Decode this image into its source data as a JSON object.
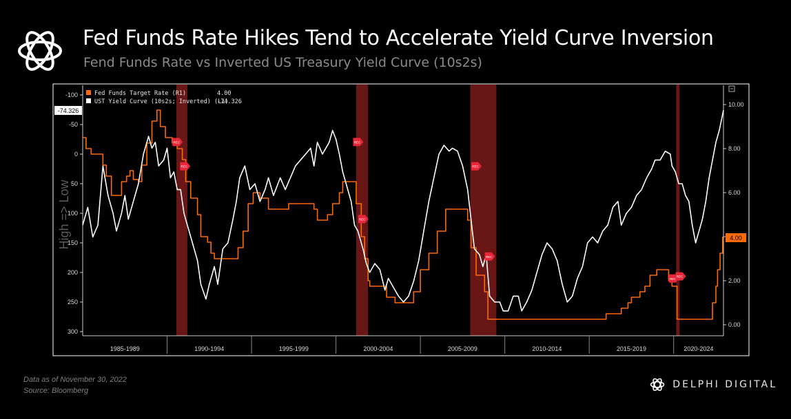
{
  "header": {
    "title": "Fed Funds Rate Hikes Tend to Accelerate Yield Curve Inversion",
    "subtitle": "Fend Funds Rate vs Inverted US Treasury Yield Curve (10s2s)"
  },
  "footer": {
    "data_note": "Data as of November 30, 2022",
    "source": "Source: Bloomberg",
    "brand": "DELPHI DIGITAL"
  },
  "colors": {
    "background": "#000000",
    "fed_funds": "#ff6a00",
    "yield_curve": "#ffffff",
    "recession": "#7a1a1a",
    "rec_marker": "#e8263a"
  },
  "chart_data": {
    "type": "line",
    "left_axis": {
      "label": "High => Low",
      "ticks": [
        "-100",
        "-50",
        "0",
        "50",
        "100",
        "150",
        "200",
        "250",
        "300"
      ],
      "ylim": [
        -100,
        300
      ],
      "inverted": true,
      "current_value_label": "-74.326"
    },
    "right_axis": {
      "ticks": [
        "0.00",
        "2.00",
        "4.00",
        "6.00",
        "8.00",
        "10.00"
      ],
      "ylim": [
        0,
        10.5
      ],
      "current_value_label": "4.00"
    },
    "x_period_labels": [
      "1985-1989",
      "1990-1994",
      "1995-1999",
      "2000-2004",
      "2005-2009",
      "2010-2014",
      "2015-2019",
      "2020-2024"
    ],
    "x_range": [
      1985.0,
      2022.95
    ],
    "recessions": [
      [
        1990.55,
        1991.2
      ],
      [
        2001.2,
        2001.9
      ],
      [
        2007.95,
        2009.5
      ],
      [
        2020.15,
        2020.35
      ]
    ],
    "rec_marker_label": "REC",
    "rec_markers": [
      {
        "x": 1990.6,
        "y_rate": 8.3
      },
      {
        "x": 1991.05,
        "y_rate": 7.2
      },
      {
        "x": 2001.3,
        "y_rate": 8.3
      },
      {
        "x": 2001.6,
        "y_rate": 4.8
      },
      {
        "x": 2008.3,
        "y_rate": 7.2
      },
      {
        "x": 2009.1,
        "y_rate": 3.1
      },
      {
        "x": 2020.0,
        "y_rate": 2.1
      },
      {
        "x": 2020.4,
        "y_rate": 2.2
      }
    ],
    "legend": [
      {
        "label": "Fed Funds Target Rate (R1)",
        "value": "4.00"
      },
      {
        "label": "UST Yield Curve (10s2s; Inverted) (L1)",
        "value": "-74.326"
      }
    ],
    "series": [
      {
        "name": "Fed Funds Target Rate (R1)",
        "axis": "right",
        "points": [
          [
            1985.0,
            8.5
          ],
          [
            1985.2,
            8.0
          ],
          [
            1985.5,
            7.75
          ],
          [
            1985.9,
            7.75
          ],
          [
            1986.2,
            7.25
          ],
          [
            1986.4,
            6.75
          ],
          [
            1986.7,
            5.875
          ],
          [
            1987.0,
            5.875
          ],
          [
            1987.3,
            6.5
          ],
          [
            1987.6,
            6.75
          ],
          [
            1987.8,
            7.0
          ],
          [
            1988.0,
            6.6
          ],
          [
            1988.3,
            6.5
          ],
          [
            1988.5,
            7.25
          ],
          [
            1988.8,
            8.25
          ],
          [
            1989.1,
            9.25
          ],
          [
            1989.4,
            9.75
          ],
          [
            1989.6,
            9.0
          ],
          [
            1989.9,
            8.5
          ],
          [
            1990.3,
            8.25
          ],
          [
            1990.6,
            8.0
          ],
          [
            1990.9,
            7.5
          ],
          [
            1991.1,
            6.5
          ],
          [
            1991.4,
            5.75
          ],
          [
            1991.8,
            5.0
          ],
          [
            1992.0,
            4.0
          ],
          [
            1992.4,
            3.75
          ],
          [
            1992.6,
            3.25
          ],
          [
            1992.8,
            3.0
          ],
          [
            1994.0,
            3.0
          ],
          [
            1994.2,
            3.5
          ],
          [
            1994.5,
            4.25
          ],
          [
            1994.8,
            5.5
          ],
          [
            1995.1,
            6.0
          ],
          [
            1995.5,
            5.75
          ],
          [
            1996.0,
            5.25
          ],
          [
            1997.2,
            5.5
          ],
          [
            1998.7,
            5.25
          ],
          [
            1998.9,
            4.75
          ],
          [
            1999.5,
            5.0
          ],
          [
            1999.8,
            5.5
          ],
          [
            2000.2,
            6.0
          ],
          [
            2000.4,
            6.5
          ],
          [
            2001.0,
            6.5
          ],
          [
            2001.2,
            5.5
          ],
          [
            2001.5,
            4.0
          ],
          [
            2001.7,
            3.0
          ],
          [
            2001.9,
            2.0
          ],
          [
            2002.0,
            1.75
          ],
          [
            2002.9,
            1.75
          ],
          [
            2003.0,
            1.25
          ],
          [
            2003.5,
            1.0
          ],
          [
            2004.4,
            1.0
          ],
          [
            2004.6,
            1.5
          ],
          [
            2005.0,
            2.5
          ],
          [
            2005.5,
            3.25
          ],
          [
            2006.0,
            4.25
          ],
          [
            2006.5,
            5.25
          ],
          [
            2007.6,
            5.25
          ],
          [
            2007.8,
            4.75
          ],
          [
            2008.0,
            3.5
          ],
          [
            2008.3,
            2.25
          ],
          [
            2008.8,
            1.5
          ],
          [
            2009.0,
            0.25
          ],
          [
            2015.9,
            0.25
          ],
          [
            2016.0,
            0.5
          ],
          [
            2016.9,
            0.75
          ],
          [
            2017.3,
            1.0
          ],
          [
            2017.5,
            1.25
          ],
          [
            2018.0,
            1.5
          ],
          [
            2018.3,
            1.75
          ],
          [
            2018.6,
            2.25
          ],
          [
            2019.0,
            2.5
          ],
          [
            2019.6,
            2.5
          ],
          [
            2019.7,
            2.0
          ],
          [
            2019.9,
            1.75
          ],
          [
            2020.1,
            1.75
          ],
          [
            2020.2,
            0.25
          ],
          [
            2022.1,
            0.25
          ],
          [
            2022.3,
            1.0
          ],
          [
            2022.5,
            1.75
          ],
          [
            2022.6,
            2.5
          ],
          [
            2022.75,
            3.25
          ],
          [
            2022.9,
            4.0
          ]
        ]
      },
      {
        "name": "UST Yield Curve (10s2s; Inverted) (L1)",
        "axis": "left",
        "points": [
          [
            1985.0,
            120
          ],
          [
            1985.3,
            90
          ],
          [
            1985.6,
            140
          ],
          [
            1985.9,
            120
          ],
          [
            1986.2,
            20
          ],
          [
            1986.5,
            70
          ],
          [
            1986.8,
            100
          ],
          [
            1987.0,
            130
          ],
          [
            1987.3,
            100
          ],
          [
            1987.5,
            70
          ],
          [
            1987.7,
            110
          ],
          [
            1988.0,
            80
          ],
          [
            1988.3,
            50
          ],
          [
            1988.6,
            0
          ],
          [
            1988.9,
            -30
          ],
          [
            1989.1,
            -10
          ],
          [
            1989.3,
            -20
          ],
          [
            1989.5,
            20
          ],
          [
            1989.8,
            10
          ],
          [
            1990.0,
            -10
          ],
          [
            1990.2,
            40
          ],
          [
            1990.4,
            30
          ],
          [
            1990.6,
            60
          ],
          [
            1990.8,
            60
          ],
          [
            1991.0,
            100
          ],
          [
            1991.2,
            120
          ],
          [
            1991.5,
            150
          ],
          [
            1991.8,
            180
          ],
          [
            1992.0,
            220
          ],
          [
            1992.3,
            245
          ],
          [
            1992.5,
            220
          ],
          [
            1992.8,
            190
          ],
          [
            1993.0,
            220
          ],
          [
            1993.3,
            160
          ],
          [
            1993.6,
            150
          ],
          [
            1993.9,
            110
          ],
          [
            1994.1,
            80
          ],
          [
            1994.3,
            40
          ],
          [
            1994.6,
            20
          ],
          [
            1994.9,
            60
          ],
          [
            1995.2,
            50
          ],
          [
            1995.5,
            80
          ],
          [
            1995.8,
            60
          ],
          [
            1996.0,
            40
          ],
          [
            1996.3,
            70
          ],
          [
            1996.7,
            40
          ],
          [
            1997.0,
            60
          ],
          [
            1997.3,
            40
          ],
          [
            1997.6,
            20
          ],
          [
            1997.9,
            10
          ],
          [
            1998.2,
            0
          ],
          [
            1998.5,
            -10
          ],
          [
            1998.7,
            20
          ],
          [
            1998.9,
            -20
          ],
          [
            1999.2,
            0
          ],
          [
            1999.6,
            -20
          ],
          [
            1999.8,
            -40
          ],
          [
            2000.0,
            -25
          ],
          [
            2000.2,
            0
          ],
          [
            2000.4,
            30
          ],
          [
            2000.6,
            50
          ],
          [
            2000.9,
            80
          ],
          [
            2001.1,
            120
          ],
          [
            2001.3,
            130
          ],
          [
            2001.6,
            160
          ],
          [
            2001.8,
            185
          ],
          [
            2002.0,
            200
          ],
          [
            2002.3,
            185
          ],
          [
            2002.6,
            195
          ],
          [
            2002.9,
            230
          ],
          [
            2003.1,
            210
          ],
          [
            2003.4,
            225
          ],
          [
            2003.7,
            240
          ],
          [
            2004.0,
            250
          ],
          [
            2004.3,
            240
          ],
          [
            2004.6,
            215
          ],
          [
            2004.9,
            180
          ],
          [
            2005.2,
            130
          ],
          [
            2005.5,
            80
          ],
          [
            2005.8,
            40
          ],
          [
            2006.1,
            0
          ],
          [
            2006.4,
            -15
          ],
          [
            2006.7,
            -5
          ],
          [
            2006.9,
            -10
          ],
          [
            2007.2,
            -5
          ],
          [
            2007.5,
            20
          ],
          [
            2007.8,
            60
          ],
          [
            2008.0,
            110
          ],
          [
            2008.2,
            160
          ],
          [
            2008.5,
            170
          ],
          [
            2008.7,
            190
          ],
          [
            2008.9,
            170
          ],
          [
            2009.1,
            240
          ],
          [
            2009.4,
            250
          ],
          [
            2009.7,
            250
          ],
          [
            2009.9,
            265
          ],
          [
            2010.2,
            265
          ],
          [
            2010.5,
            240
          ],
          [
            2010.8,
            240
          ],
          [
            2011.0,
            265
          ],
          [
            2011.3,
            250
          ],
          [
            2011.6,
            230
          ],
          [
            2011.9,
            200
          ],
          [
            2012.2,
            170
          ],
          [
            2012.5,
            150
          ],
          [
            2012.8,
            160
          ],
          [
            2013.1,
            180
          ],
          [
            2013.4,
            220
          ],
          [
            2013.7,
            250
          ],
          [
            2014.0,
            240
          ],
          [
            2014.3,
            210
          ],
          [
            2014.6,
            190
          ],
          [
            2014.9,
            150
          ],
          [
            2015.2,
            140
          ],
          [
            2015.5,
            150
          ],
          [
            2015.8,
            130
          ],
          [
            2016.1,
            120
          ],
          [
            2016.4,
            90
          ],
          [
            2016.7,
            80
          ],
          [
            2016.9,
            120
          ],
          [
            2017.2,
            100
          ],
          [
            2017.5,
            90
          ],
          [
            2017.8,
            70
          ],
          [
            2018.1,
            60
          ],
          [
            2018.4,
            40
          ],
          [
            2018.7,
            25
          ],
          [
            2018.9,
            10
          ],
          [
            2019.2,
            10
          ],
          [
            2019.5,
            -5
          ],
          [
            2019.8,
            0
          ],
          [
            2019.9,
            20
          ],
          [
            2020.1,
            30
          ],
          [
            2020.3,
            50
          ],
          [
            2020.5,
            50
          ],
          [
            2020.7,
            70
          ],
          [
            2020.9,
            80
          ],
          [
            2021.1,
            120
          ],
          [
            2021.3,
            150
          ],
          [
            2021.5,
            130
          ],
          [
            2021.7,
            110
          ],
          [
            2021.9,
            80
          ],
          [
            2022.1,
            40
          ],
          [
            2022.3,
            10
          ],
          [
            2022.5,
            -20
          ],
          [
            2022.7,
            -40
          ],
          [
            2022.95,
            -74.326
          ]
        ]
      }
    ]
  }
}
